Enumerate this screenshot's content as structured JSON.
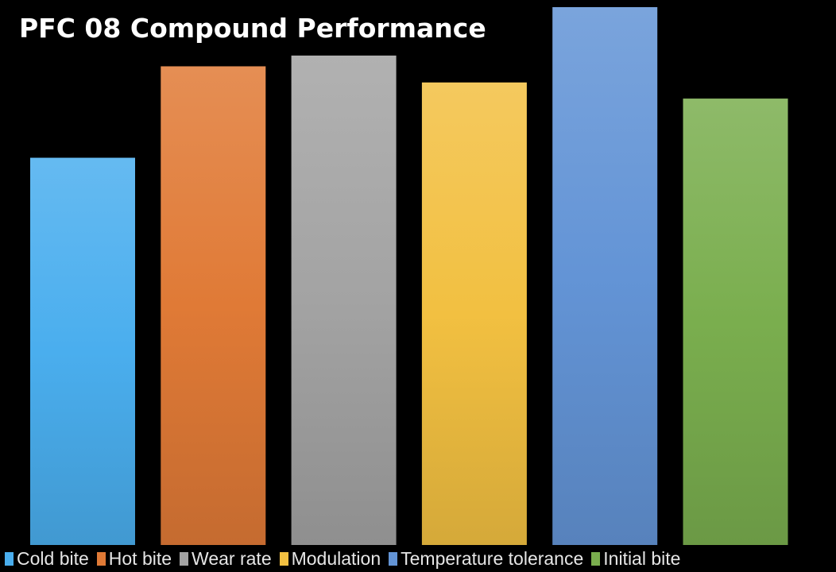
{
  "chart_data": {
    "type": "bar",
    "title": "PFC 08 Compound Performance",
    "categories": [
      "Cold bite",
      "Hot bite",
      "Wear rate",
      "Modulation",
      "Temperature tolerance",
      "Initial bite"
    ],
    "values": [
      7.2,
      8.9,
      9.1,
      8.6,
      10.0,
      8.3
    ],
    "ylim": [
      0,
      10
    ],
    "axes_visible": false,
    "grid": false,
    "legend_position": "bottom",
    "colors": [
      "#4aaeee",
      "#e07a36",
      "#a3a3a3",
      "#f2c041",
      "#6394d6",
      "#7aae4e"
    ],
    "xlabel": "",
    "ylabel": ""
  }
}
